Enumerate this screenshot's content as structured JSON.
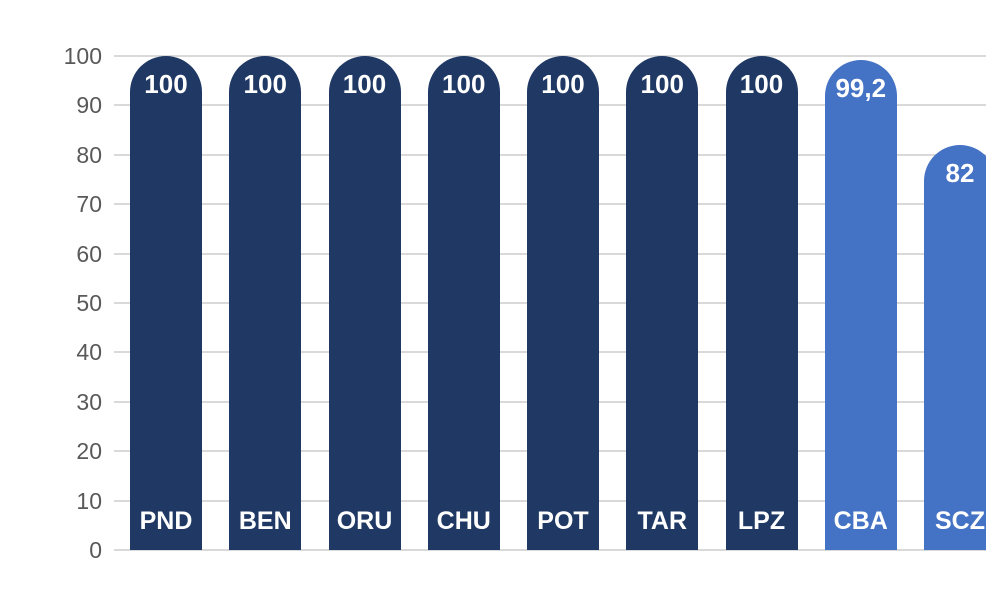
{
  "chart_data": {
    "type": "bar",
    "title": "",
    "xlabel": "",
    "ylabel": "",
    "categories": [
      "PND",
      "BEN",
      "ORU",
      "CHU",
      "POT",
      "TAR",
      "LPZ",
      "CBA",
      "SCZ"
    ],
    "values": [
      100,
      100,
      100,
      100,
      100,
      100,
      100,
      99.2,
      82
    ],
    "value_labels": [
      "100",
      "100",
      "100",
      "100",
      "100",
      "100",
      "100",
      "99,2",
      "82"
    ],
    "bar_colors": [
      "#1F3864",
      "#1F3864",
      "#1F3864",
      "#1F3864",
      "#1F3864",
      "#1F3864",
      "#1F3864",
      "#4472C4",
      "#4472C4"
    ],
    "ylim": [
      0,
      100
    ],
    "yticks": [
      0,
      10,
      20,
      30,
      40,
      50,
      60,
      70,
      80,
      90,
      100
    ],
    "grid": true,
    "legend": "none",
    "bar_shape": "rounded-top",
    "colors": {
      "dark_bar": "#1F3864",
      "light_bar": "#4472C4",
      "gridline": "#D9D9D9",
      "axis_label": "#595959",
      "value_label": "#FFFFFF",
      "category_label": "#FFFFFF",
      "background": "#FFFFFF"
    }
  }
}
